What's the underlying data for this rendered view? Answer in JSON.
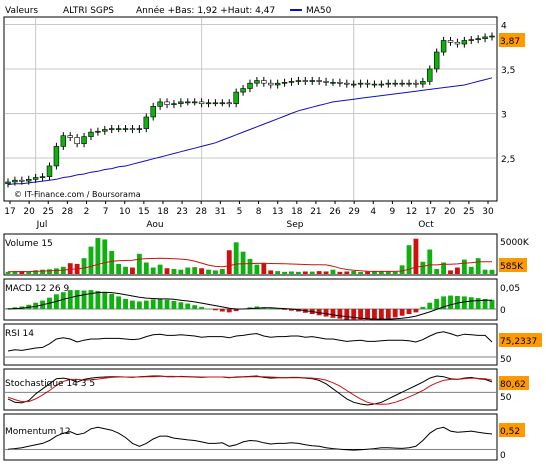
{
  "header": {
    "label": "Valeurs",
    "name": "ALTRI SGPS",
    "stats": "Année +Bas: 1,92 +Haut: 4,47",
    "ma_label": "MA50"
  },
  "copyright": "© IT-Finance.com / Boursorama",
  "colors": {
    "up": "#10b010",
    "down": "#d01010",
    "ma": "#1010c0",
    "badge": "#ff9900",
    "grid": "#c8c8c8"
  },
  "chart_data": [
    {
      "type": "candlestick",
      "title": "ALTRI SGPS",
      "ylim": [
        2.05,
        4.05
      ],
      "y_ticks": [
        "2,5",
        "3",
        "3,5",
        "4"
      ],
      "x_tick_labels": [
        "17",
        "20",
        "25",
        "28",
        "2",
        "7",
        "10",
        "15",
        "18",
        "23",
        "28",
        "31",
        "5",
        "8",
        "13",
        "18",
        "21",
        "26",
        "29",
        "4",
        "9",
        "12",
        "17",
        "20",
        "25",
        "30"
      ],
      "month_labels": [
        "Jul",
        "Aou",
        "Sep",
        "Oct"
      ],
      "last_value_label": "3,87",
      "close": [
        2.23,
        2.25,
        2.24,
        2.26,
        2.28,
        2.29,
        2.41,
        2.63,
        2.75,
        2.73,
        2.66,
        2.74,
        2.79,
        2.8,
        2.82,
        2.83,
        2.83,
        2.83,
        2.82,
        2.83,
        2.96,
        3.08,
        3.13,
        3.1,
        3.11,
        3.13,
        3.13,
        3.13,
        3.11,
        3.12,
        3.12,
        3.12,
        3.11,
        3.24,
        3.28,
        3.34,
        3.37,
        3.34,
        3.32,
        3.34,
        3.35,
        3.36,
        3.37,
        3.36,
        3.37,
        3.36,
        3.35,
        3.35,
        3.34,
        3.33,
        3.33,
        3.34,
        3.33,
        3.33,
        3.33,
        3.34,
        3.34,
        3.34,
        3.34,
        3.33,
        3.36,
        3.5,
        3.69,
        3.82,
        3.8,
        3.78,
        3.82,
        3.83,
        3.84,
        3.86,
        3.87
      ],
      "ma50": [
        2.2,
        2.21,
        2.21,
        2.22,
        2.23,
        2.24,
        2.25,
        2.26,
        2.28,
        2.29,
        2.31,
        2.32,
        2.34,
        2.35,
        2.37,
        2.38,
        2.4,
        2.41,
        2.43,
        2.45,
        2.47,
        2.49,
        2.51,
        2.53,
        2.55,
        2.57,
        2.59,
        2.61,
        2.63,
        2.65,
        2.67,
        2.7,
        2.73,
        2.76,
        2.79,
        2.82,
        2.85,
        2.88,
        2.91,
        2.94,
        2.97,
        3.0,
        3.03,
        3.05,
        3.07,
        3.09,
        3.11,
        3.13,
        3.14,
        3.15,
        3.16,
        3.17,
        3.18,
        3.19,
        3.2,
        3.21,
        3.22,
        3.23,
        3.24,
        3.25,
        3.26,
        3.27,
        3.28,
        3.29,
        3.3,
        3.31,
        3.32,
        3.34,
        3.36,
        3.38,
        3.4
      ]
    },
    {
      "type": "bar",
      "title": "Volume 15",
      "y_tick_labels": [
        "5000K"
      ],
      "last_value_label": "585K",
      "values": [
        300,
        380,
        350,
        300,
        520,
        600,
        650,
        780,
        1000,
        1500,
        1400,
        2200,
        3800,
        5000,
        4800,
        3200,
        1400,
        1000,
        900,
        2800,
        1600,
        900,
        1300,
        800,
        700,
        600,
        900,
        950,
        800,
        600,
        500,
        700,
        3300,
        4400,
        3100,
        2100,
        1300,
        1500,
        500,
        400,
        300,
        350,
        300,
        350,
        330,
        400,
        350,
        600,
        300,
        350,
        420,
        280,
        330,
        350,
        400,
        380,
        300,
        1200,
        4000,
        4900,
        1700,
        3400,
        700,
        1600,
        500,
        900,
        2000,
        1000,
        2200,
        600,
        585
      ]
    },
    {
      "type": "bar",
      "title": "MACD 12 26 9",
      "y_tick_labels": [
        "0,05",
        "0"
      ],
      "values": [
        0.002,
        0.004,
        0.006,
        0.01,
        0.015,
        0.02,
        0.027,
        0.035,
        0.04,
        0.045,
        0.045,
        0.044,
        0.045,
        0.043,
        0.04,
        0.036,
        0.03,
        0.024,
        0.02,
        0.018,
        0.02,
        0.023,
        0.024,
        0.022,
        0.019,
        0.016,
        0.013,
        0.009,
        0.005,
        0.0,
        -0.003,
        -0.006,
        -0.008,
        -0.005,
        0.001,
        0.004,
        0.006,
        0.004,
        0.002,
        0.0,
        -0.002,
        -0.004,
        -0.006,
        -0.009,
        -0.012,
        -0.015,
        -0.018,
        -0.021,
        -0.023,
        -0.025,
        -0.026,
        -0.027,
        -0.027,
        -0.026,
        -0.025,
        -0.023,
        -0.02,
        -0.016,
        -0.012,
        -0.008,
        0.005,
        0.015,
        0.024,
        0.03,
        0.032,
        0.031,
        0.03,
        0.028,
        0.026,
        0.024,
        0.022
      ],
      "signal": [
        0.0,
        0.001,
        0.002,
        0.004,
        0.006,
        0.01,
        0.014,
        0.018,
        0.023,
        0.027,
        0.031,
        0.034,
        0.037,
        0.039,
        0.04,
        0.039,
        0.037,
        0.034,
        0.031,
        0.028,
        0.026,
        0.025,
        0.024,
        0.024,
        0.023,
        0.021,
        0.019,
        0.017,
        0.014,
        0.011,
        0.008,
        0.005,
        0.002,
        0.0,
        0.0,
        0.001,
        0.002,
        0.003,
        0.003,
        0.002,
        0.001,
        0.0,
        -0.002,
        -0.004,
        -0.006,
        -0.009,
        -0.011,
        -0.014,
        -0.016,
        -0.018,
        -0.02,
        -0.022,
        -0.023,
        -0.024,
        -0.024,
        -0.024,
        -0.023,
        -0.022,
        -0.02,
        -0.017,
        -0.012,
        -0.007,
        -0.001,
        0.005,
        0.01,
        0.014,
        0.017,
        0.019,
        0.02,
        0.021,
        0.021
      ]
    },
    {
      "type": "line",
      "title": "RSI 14",
      "y_tick_labels": [
        "50"
      ],
      "last_value_label": "75,2337",
      "ylim": [
        40,
        100
      ],
      "values": [
        60,
        62,
        61,
        63,
        65,
        66,
        72,
        80,
        82,
        80,
        75,
        78,
        80,
        80,
        81,
        81,
        81,
        80,
        79,
        80,
        84,
        87,
        88,
        86,
        86,
        87,
        86,
        85,
        83,
        84,
        84,
        84,
        82,
        85,
        86,
        88,
        89,
        85,
        83,
        84,
        84,
        85,
        85,
        83,
        84,
        82,
        80,
        80,
        78,
        76,
        77,
        78,
        76,
        76,
        77,
        78,
        78,
        78,
        77,
        75,
        79,
        85,
        90,
        92,
        89,
        85,
        88,
        87,
        86,
        86,
        75
      ]
    },
    {
      "type": "line",
      "title": "Stochastique 14 3 5",
      "y_tick_labels": [
        "50"
      ],
      "last_value_label": "80,62",
      "ylim": [
        0,
        110
      ],
      "values": [
        30,
        20,
        18,
        25,
        45,
        60,
        75,
        90,
        92,
        88,
        80,
        88,
        92,
        94,
        95,
        96,
        96,
        95,
        94,
        96,
        97,
        98,
        98,
        96,
        96,
        97,
        96,
        95,
        94,
        95,
        95,
        95,
        93,
        95,
        96,
        97,
        98,
        94,
        92,
        93,
        93,
        94,
        94,
        92,
        90,
        85,
        75,
        60,
        45,
        30,
        20,
        15,
        12,
        15,
        20,
        30,
        40,
        50,
        60,
        70,
        80,
        92,
        98,
        96,
        90,
        88,
        92,
        94,
        90,
        88,
        80.6
      ],
      "signal": [
        35,
        28,
        22,
        22,
        30,
        42,
        55,
        70,
        82,
        88,
        88,
        86,
        87,
        89,
        92,
        94,
        95,
        95,
        95,
        95,
        96,
        96,
        97,
        97,
        97,
        96,
        96,
        96,
        95,
        95,
        95,
        95,
        94,
        94,
        95,
        96,
        96,
        96,
        95,
        94,
        93,
        93,
        93,
        93,
        92,
        90,
        86,
        78,
        68,
        55,
        42,
        30,
        20,
        15,
        14,
        15,
        20,
        27,
        36,
        45,
        55,
        68,
        78,
        85,
        88,
        88,
        90,
        92,
        91,
        90,
        86
      ]
    },
    {
      "type": "line",
      "title": "Momentum 12",
      "y_tick_labels": [
        "0"
      ],
      "last_value_label": "0,52",
      "ylim": [
        -0.3,
        1.0
      ],
      "values": [
        0.0,
        0.02,
        0.05,
        0.1,
        0.15,
        0.2,
        0.3,
        0.45,
        0.55,
        0.6,
        0.5,
        0.55,
        0.7,
        0.75,
        0.7,
        0.65,
        0.55,
        0.4,
        0.2,
        0.1,
        0.2,
        0.35,
        0.45,
        0.45,
        0.38,
        0.35,
        0.32,
        0.3,
        0.25,
        0.2,
        0.2,
        0.22,
        0.1,
        0.15,
        0.25,
        0.3,
        0.28,
        0.22,
        0.18,
        0.2,
        0.2,
        0.22,
        0.2,
        0.15,
        0.12,
        0.1,
        0.05,
        0.02,
        0.0,
        -0.02,
        -0.03,
        -0.02,
        0.0,
        0.02,
        0.05,
        0.05,
        0.04,
        0.03,
        0.05,
        0.1,
        0.3,
        0.55,
        0.7,
        0.75,
        0.62,
        0.58,
        0.6,
        0.62,
        0.58,
        0.55,
        0.52
      ]
    }
  ]
}
